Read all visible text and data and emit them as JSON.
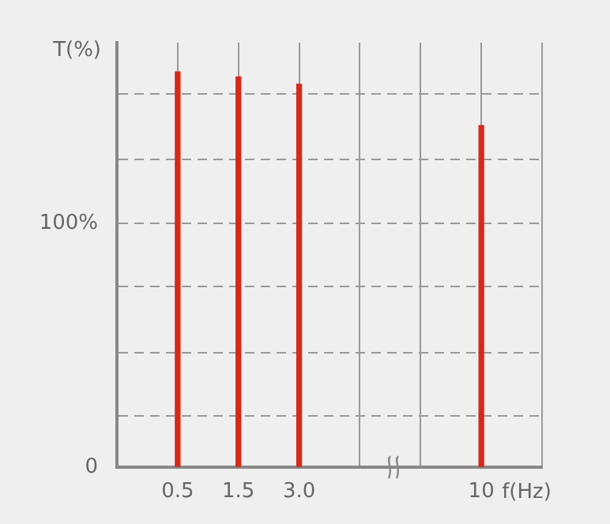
{
  "chart_data": {
    "type": "bar",
    "ylabel": "T(%)",
    "xlabel": "f(Hz)",
    "categories": [
      null,
      "0.5",
      "1.5",
      "3.0",
      null,
      null,
      "10",
      null
    ],
    "values": [
      null,
      162,
      160,
      157,
      null,
      null,
      140,
      null
    ],
    "color": "#d42a1a",
    "ylim": [
      0,
      174
    ],
    "yticks": [
      {
        "value": 0,
        "label": "0"
      },
      {
        "value": 21,
        "label": null
      },
      {
        "value": 47,
        "label": null
      },
      {
        "value": 74,
        "label": null
      },
      {
        "value": 100,
        "label": "100%"
      },
      {
        "value": 126,
        "label": null
      },
      {
        "value": 153,
        "label": null
      }
    ],
    "grid": true,
    "legend": false
  }
}
